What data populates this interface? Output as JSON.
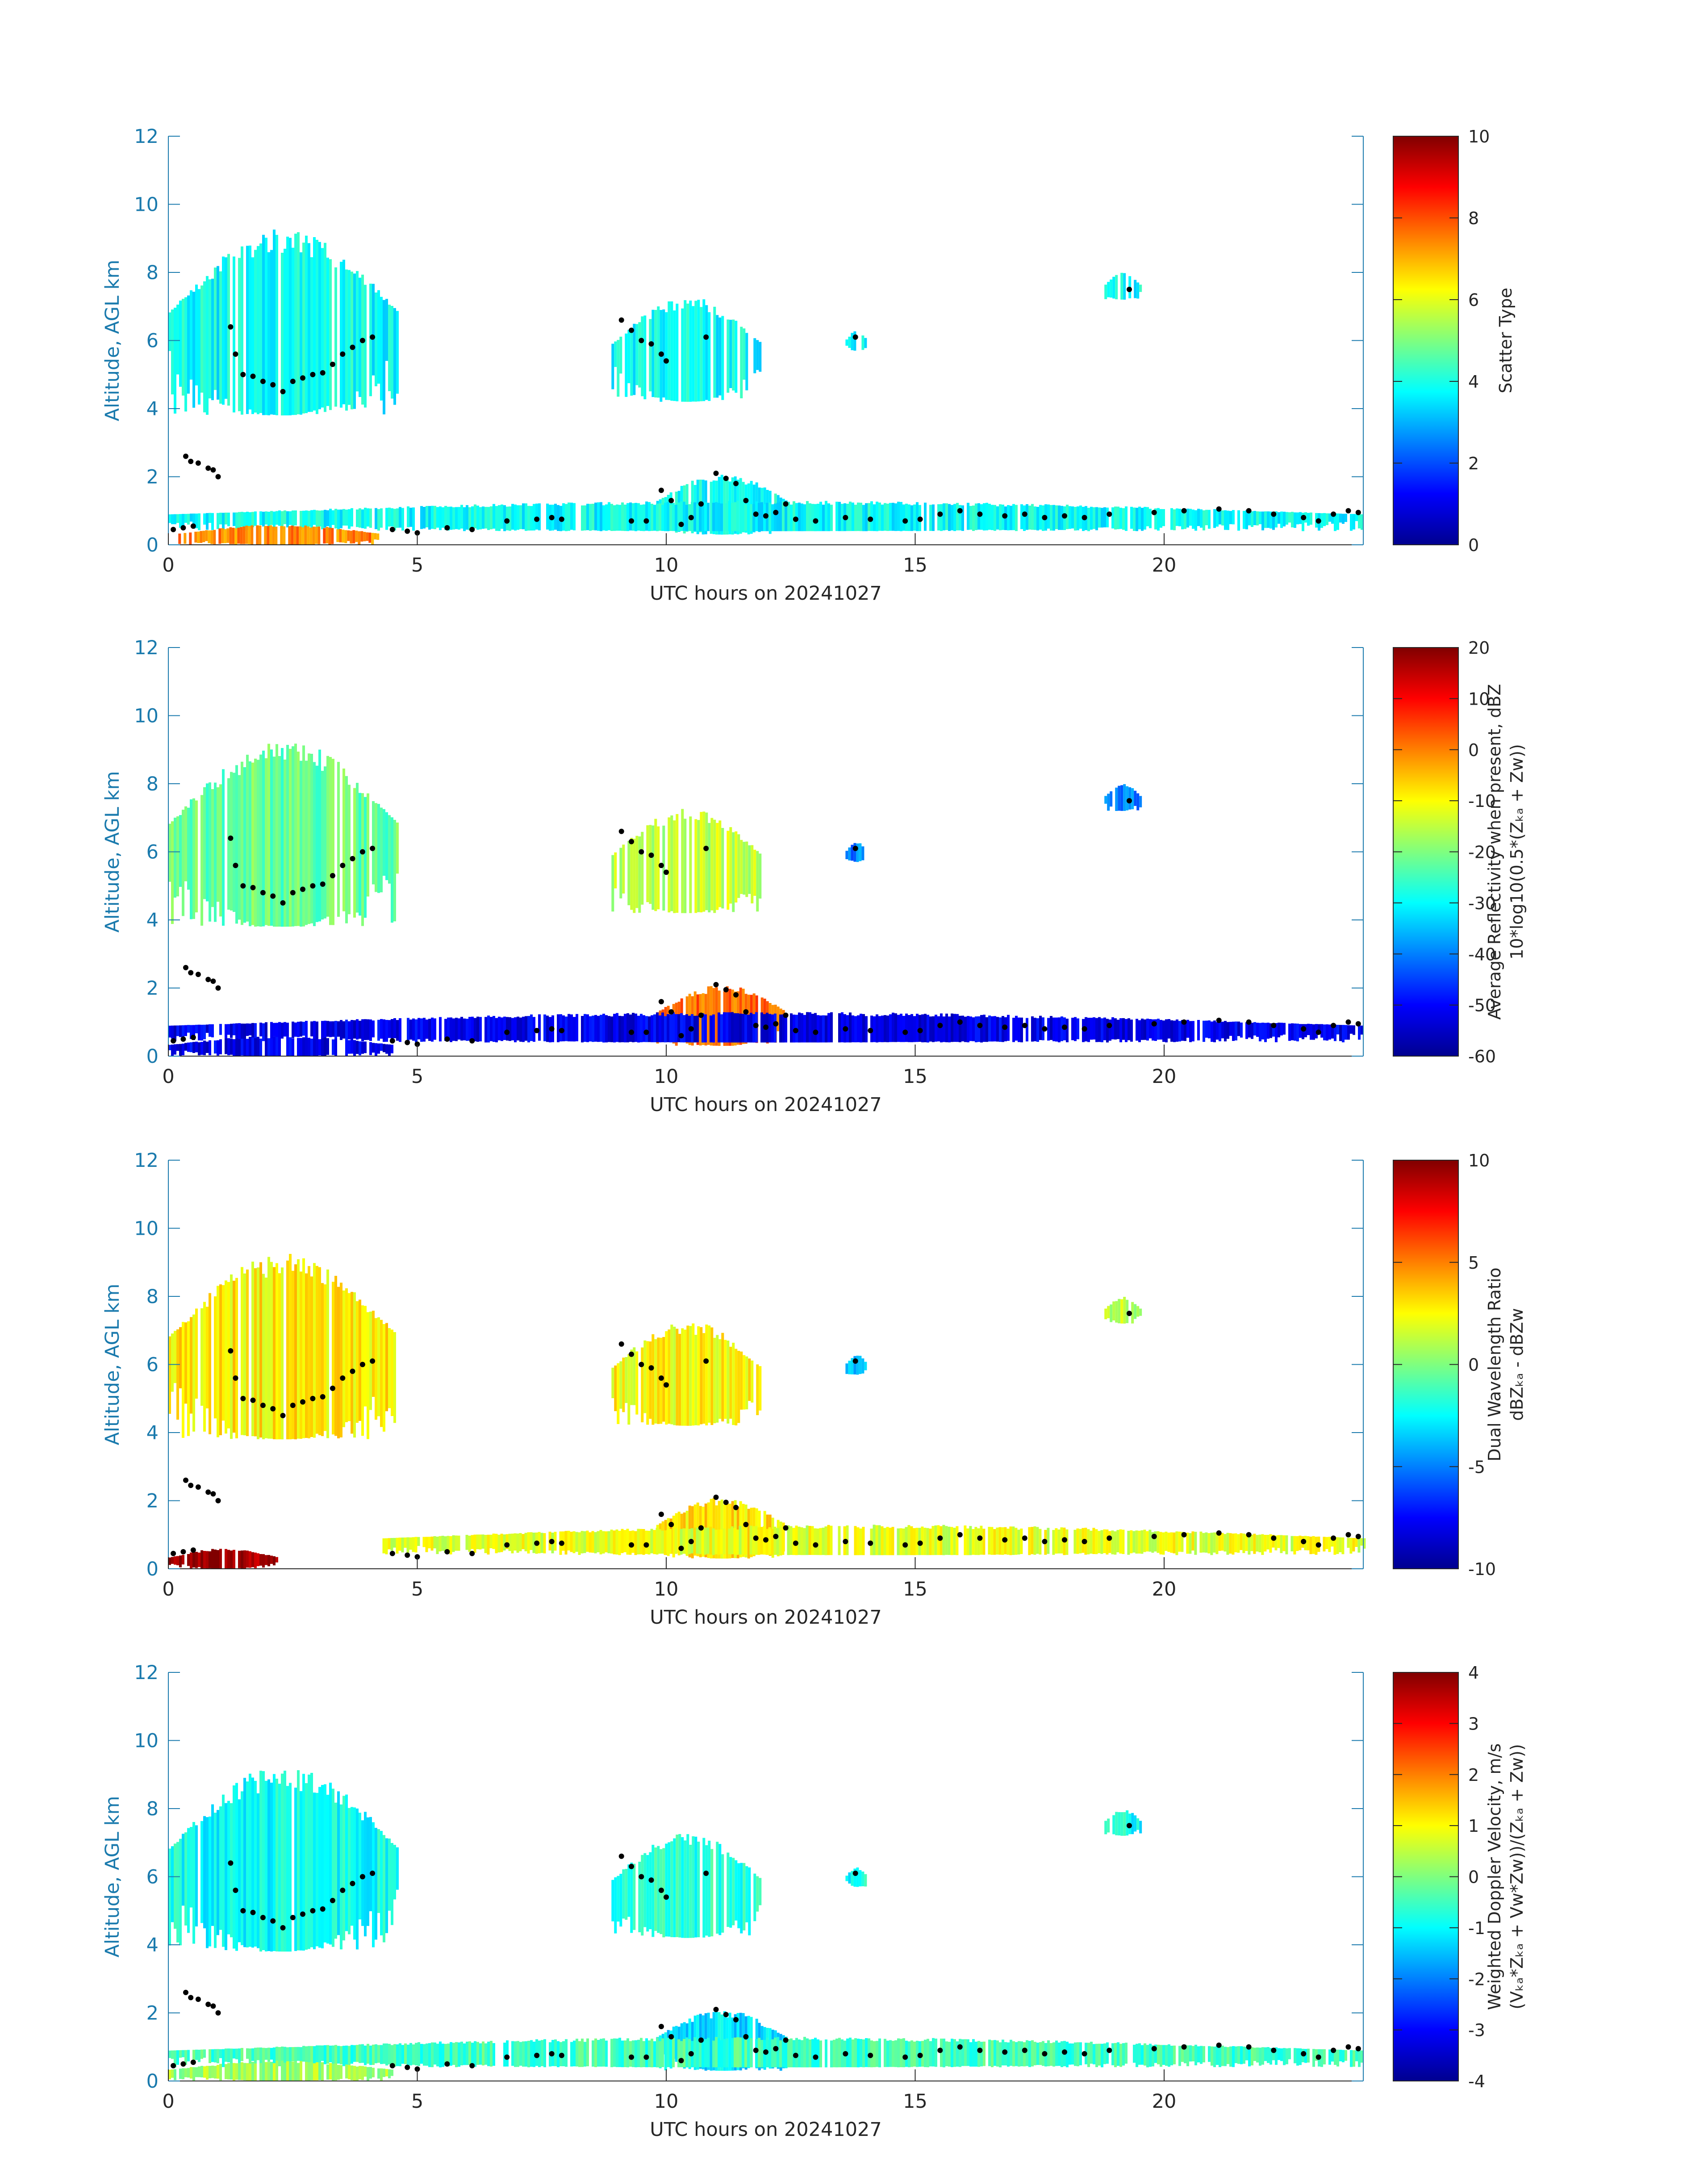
{
  "chart_data": [
    {
      "type": "heatmap",
      "xlabel": "UTC hours on 20241027",
      "ylabel": "Altitude, AGL km",
      "xlim": [
        0,
        24
      ],
      "ylim": [
        0,
        12
      ],
      "x_ticks": [
        "0",
        "5",
        "10",
        "15",
        "20"
      ],
      "y_ticks": [
        "0",
        "2",
        "4",
        "6",
        "8",
        "10",
        "12"
      ],
      "colorbar": {
        "label_lines": [
          "Scatter Type"
        ],
        "range": [
          0,
          10
        ],
        "ticks": [
          "0",
          "2",
          "4",
          "6",
          "8",
          "10"
        ],
        "colormap": "jet"
      },
      "fields": [
        {
          "name": "upper-cloud-early",
          "t0": 0.0,
          "t1": 4.6,
          "base_km": 3.8,
          "top_km": 9.3,
          "value": 3.8
        },
        {
          "name": "cloud-9-12h",
          "t0": 8.9,
          "t1": 11.9,
          "base_km": 4.2,
          "top_km": 7.3,
          "value": 3.8
        },
        {
          "name": "patch-14h",
          "t0": 13.6,
          "t1": 14.0,
          "base_km": 5.7,
          "top_km": 6.3,
          "value": 3.8
        },
        {
          "name": "patch-19h",
          "t0": 18.8,
          "t1": 19.5,
          "base_km": 7.2,
          "top_km": 8.0,
          "value": 3.8
        },
        {
          "name": "low-cloud-10-12h",
          "t0": 9.8,
          "t1": 12.4,
          "base_km": 0.3,
          "top_km": 2.1,
          "value": 3.8
        },
        {
          "name": "boundary-layer-scatter",
          "t0": 0.0,
          "t1": 24.0,
          "base_km": 0.4,
          "top_km": 1.3,
          "value": 3.8
        },
        {
          "name": "surface-clutter",
          "t0": 0.2,
          "t1": 4.2,
          "base_km": 0.0,
          "top_km": 0.6,
          "value": 7.5
        }
      ]
    },
    {
      "type": "heatmap",
      "xlabel": "UTC hours on 20241027",
      "ylabel": "Altitude, AGL km",
      "xlim": [
        0,
        24
      ],
      "ylim": [
        0,
        12
      ],
      "x_ticks": [
        "0",
        "5",
        "10",
        "15",
        "20"
      ],
      "y_ticks": [
        "0",
        "2",
        "4",
        "6",
        "8",
        "10",
        "12"
      ],
      "colorbar": {
        "label_lines": [
          "Average Reflectivity when present, dBZ",
          "10*log10(0.5*(Zₖₐ + Zᴡ))"
        ],
        "range": [
          -60,
          20
        ],
        "ticks": [
          "-60",
          "-50",
          "-40",
          "-30",
          "-20",
          "-10",
          "0",
          "10",
          "20"
        ],
        "colormap": "jet"
      },
      "fields": [
        {
          "name": "upper-cloud-early",
          "t0": 0.0,
          "t1": 4.6,
          "base_km": 3.8,
          "top_km": 9.3,
          "value": -22
        },
        {
          "name": "cloud-9-12h",
          "t0": 8.9,
          "t1": 11.9,
          "base_km": 4.2,
          "top_km": 7.3,
          "value": -15
        },
        {
          "name": "patch-14h",
          "t0": 13.6,
          "t1": 14.0,
          "base_km": 5.7,
          "top_km": 6.3,
          "value": -40
        },
        {
          "name": "patch-19h",
          "t0": 18.8,
          "t1": 19.5,
          "base_km": 7.2,
          "top_km": 8.0,
          "value": -40
        },
        {
          "name": "low-cloud-10-12h",
          "t0": 9.8,
          "t1": 12.4,
          "base_km": 0.3,
          "top_km": 2.1,
          "value": 2
        },
        {
          "name": "boundary-layer-scatter",
          "t0": 0.0,
          "t1": 24.0,
          "base_km": 0.4,
          "top_km": 1.3,
          "value": -52
        },
        {
          "name": "surface-clutter",
          "t0": 0.0,
          "t1": 4.5,
          "base_km": 0.0,
          "top_km": 0.6,
          "value": -52
        }
      ]
    },
    {
      "type": "heatmap",
      "xlabel": "UTC hours on 20241027",
      "ylabel": "Altitude, AGL km",
      "xlim": [
        0,
        24
      ],
      "ylim": [
        0,
        12
      ],
      "x_ticks": [
        "0",
        "5",
        "10",
        "15",
        "20"
      ],
      "y_ticks": [
        "0",
        "2",
        "4",
        "6",
        "8",
        "10",
        "12"
      ],
      "colorbar": {
        "label_lines": [
          "Dual Wavelength Ratio",
          "dBZₖₐ - dBZᴡ"
        ],
        "range": [
          -10,
          10
        ],
        "ticks": [
          "-10",
          "-5",
          "0",
          "5",
          "10"
        ],
        "colormap": "jet"
      },
      "fields": [
        {
          "name": "upper-cloud-early",
          "t0": 0.0,
          "t1": 4.6,
          "base_km": 3.8,
          "top_km": 9.3,
          "value": 2.8
        },
        {
          "name": "cloud-9-12h",
          "t0": 8.9,
          "t1": 11.9,
          "base_km": 4.2,
          "top_km": 7.3,
          "value": 2.5
        },
        {
          "name": "patch-14h",
          "t0": 13.6,
          "t1": 14.0,
          "base_km": 5.7,
          "top_km": 6.3,
          "value": -4
        },
        {
          "name": "patch-19h",
          "t0": 18.8,
          "t1": 19.5,
          "base_km": 7.2,
          "top_km": 8.0,
          "value": 1
        },
        {
          "name": "low-cloud-10-12h",
          "t0": 9.8,
          "t1": 12.4,
          "base_km": 0.3,
          "top_km": 2.1,
          "value": 3
        },
        {
          "name": "boundary-layer-scatter",
          "t0": 4.3,
          "t1": 24.0,
          "base_km": 0.4,
          "top_km": 1.3,
          "value": 2
        },
        {
          "name": "surface-clutter",
          "t0": 0.0,
          "t1": 2.2,
          "base_km": 0.0,
          "top_km": 0.6,
          "value": 9.5
        }
      ]
    },
    {
      "type": "heatmap",
      "xlabel": "UTC hours on 20241027",
      "ylabel": "Altitude, AGL km",
      "xlim": [
        0,
        24
      ],
      "ylim": [
        0,
        12
      ],
      "x_ticks": [
        "0",
        "5",
        "10",
        "15",
        "20"
      ],
      "y_ticks": [
        "0",
        "2",
        "4",
        "6",
        "8",
        "10",
        "12"
      ],
      "colorbar": {
        "label_lines": [
          "Weighted Doppler Velocity, m/s",
          "(Vₖₐ*Zₖₐ + Vᴡ*Zᴡ))/(Zₖₐ + Zᴡ))"
        ],
        "range": [
          -4,
          4
        ],
        "ticks": [
          "-4",
          "-3",
          "-2",
          "-1",
          "0",
          "1",
          "2",
          "3",
          "4"
        ],
        "colormap": "jet"
      },
      "fields": [
        {
          "name": "upper-cloud-early",
          "t0": 0.0,
          "t1": 4.6,
          "base_km": 3.8,
          "top_km": 9.3,
          "value": -0.9
        },
        {
          "name": "cloud-9-12h",
          "t0": 8.9,
          "t1": 11.9,
          "base_km": 4.2,
          "top_km": 7.3,
          "value": -0.7
        },
        {
          "name": "patch-14h",
          "t0": 13.6,
          "t1": 14.0,
          "base_km": 5.7,
          "top_km": 6.3,
          "value": -0.9
        },
        {
          "name": "patch-19h",
          "t0": 18.8,
          "t1": 19.5,
          "base_km": 7.2,
          "top_km": 8.0,
          "value": -0.9
        },
        {
          "name": "low-cloud-10-12h",
          "t0": 9.8,
          "t1": 12.4,
          "base_km": 0.3,
          "top_km": 2.1,
          "value": -1.2
        },
        {
          "name": "boundary-layer-scatter",
          "t0": 0.0,
          "t1": 24.0,
          "base_km": 0.4,
          "top_km": 1.3,
          "value": -0.5
        },
        {
          "name": "surface-clutter",
          "t0": 0.0,
          "t1": 4.5,
          "base_km": 0.0,
          "top_km": 0.6,
          "value": 0.3
        }
      ]
    }
  ],
  "overlay": {
    "marker": "black-dot",
    "points": [
      [
        0.1,
        0.45
      ],
      [
        0.3,
        0.5
      ],
      [
        0.5,
        0.55
      ],
      [
        0.35,
        2.6
      ],
      [
        0.45,
        2.45
      ],
      [
        0.6,
        2.4
      ],
      [
        0.8,
        2.25
      ],
      [
        0.9,
        2.2
      ],
      [
        1.0,
        2.0
      ],
      [
        1.25,
        6.4
      ],
      [
        1.35,
        5.6
      ],
      [
        1.5,
        5.0
      ],
      [
        1.7,
        4.95
      ],
      [
        1.9,
        4.8
      ],
      [
        2.1,
        4.7
      ],
      [
        2.3,
        4.5
      ],
      [
        2.5,
        4.8
      ],
      [
        2.7,
        4.9
      ],
      [
        2.9,
        5.0
      ],
      [
        3.1,
        5.05
      ],
      [
        3.3,
        5.3
      ],
      [
        3.5,
        5.6
      ],
      [
        3.7,
        5.8
      ],
      [
        3.9,
        6.0
      ],
      [
        4.1,
        6.1
      ],
      [
        4.5,
        0.45
      ],
      [
        4.8,
        0.4
      ],
      [
        5.0,
        0.35
      ],
      [
        5.6,
        0.5
      ],
      [
        6.1,
        0.45
      ],
      [
        6.8,
        0.7
      ],
      [
        7.4,
        0.75
      ],
      [
        7.7,
        0.8
      ],
      [
        7.9,
        0.75
      ],
      [
        9.1,
        6.6
      ],
      [
        9.3,
        6.3
      ],
      [
        9.5,
        6.0
      ],
      [
        9.7,
        5.9
      ],
      [
        9.9,
        5.6
      ],
      [
        10.0,
        5.4
      ],
      [
        10.8,
        6.1
      ],
      [
        9.3,
        0.7
      ],
      [
        9.6,
        0.7
      ],
      [
        9.9,
        1.6
      ],
      [
        10.1,
        1.3
      ],
      [
        10.3,
        0.6
      ],
      [
        10.5,
        0.8
      ],
      [
        10.7,
        1.2
      ],
      [
        11.0,
        2.1
      ],
      [
        11.2,
        1.95
      ],
      [
        11.4,
        1.8
      ],
      [
        11.6,
        1.3
      ],
      [
        11.8,
        0.9
      ],
      [
        12.0,
        0.85
      ],
      [
        12.2,
        0.95
      ],
      [
        12.4,
        1.2
      ],
      [
        12.6,
        0.75
      ],
      [
        13.0,
        0.7
      ],
      [
        13.6,
        0.8
      ],
      [
        13.8,
        6.1
      ],
      [
        14.1,
        0.75
      ],
      [
        14.8,
        0.7
      ],
      [
        15.1,
        0.75
      ],
      [
        15.5,
        0.9
      ],
      [
        15.9,
        1.0
      ],
      [
        16.3,
        0.9
      ],
      [
        16.8,
        0.85
      ],
      [
        17.2,
        0.9
      ],
      [
        17.6,
        0.8
      ],
      [
        18.0,
        0.85
      ],
      [
        18.4,
        0.8
      ],
      [
        18.9,
        0.9
      ],
      [
        19.3,
        7.5
      ],
      [
        19.8,
        0.95
      ],
      [
        20.4,
        1.0
      ],
      [
        21.1,
        1.05
      ],
      [
        21.7,
        1.0
      ],
      [
        22.2,
        0.9
      ],
      [
        22.8,
        0.8
      ],
      [
        23.1,
        0.7
      ],
      [
        23.4,
        0.9
      ],
      [
        23.7,
        1.0
      ],
      [
        23.9,
        0.95
      ]
    ]
  },
  "colors": {
    "axis": "#1a7aad",
    "text": "#262626",
    "marker": "#000000"
  }
}
